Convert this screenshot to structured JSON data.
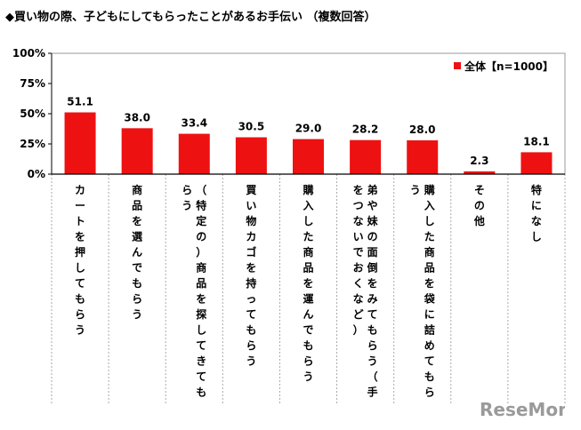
{
  "chart_data": {
    "type": "bar",
    "title": "◆買い物の際、子どもにしてもらったことがあるお手伝い （複数回答）",
    "categories": [
      "カートを押してもらう",
      "商品を選んでもらう",
      "（特定の）商品を探してきてもらう",
      "買い物カゴを持ってもらう",
      "購入した商品を運んでもらう",
      "弟や妹の面倒をみてもらう（手をつないでおくなど）",
      "購入した商品を袋に詰めてもらう",
      "その他",
      "特になし"
    ],
    "series": [
      {
        "name": "全体【n=1000】",
        "values": [
          51.1,
          38.0,
          33.4,
          30.5,
          29.0,
          28.2,
          28.0,
          2.3,
          18.1
        ]
      }
    ],
    "value_labels": [
      "51.1",
      "38.0",
      "33.4",
      "30.5",
      "29.0",
      "28.2",
      "28.0",
      "2.3",
      "18.1"
    ],
    "y_ticks": [
      "0%",
      "25%",
      "50%",
      "75%",
      "100%"
    ],
    "ylim": [
      0,
      100
    ],
    "legend_position": "top-right",
    "colors": {
      "bar": "#ee1111",
      "axis": "#000000",
      "grid": "#d0d0d0"
    }
  },
  "watermark": {
    "text": "ReseMom"
  }
}
